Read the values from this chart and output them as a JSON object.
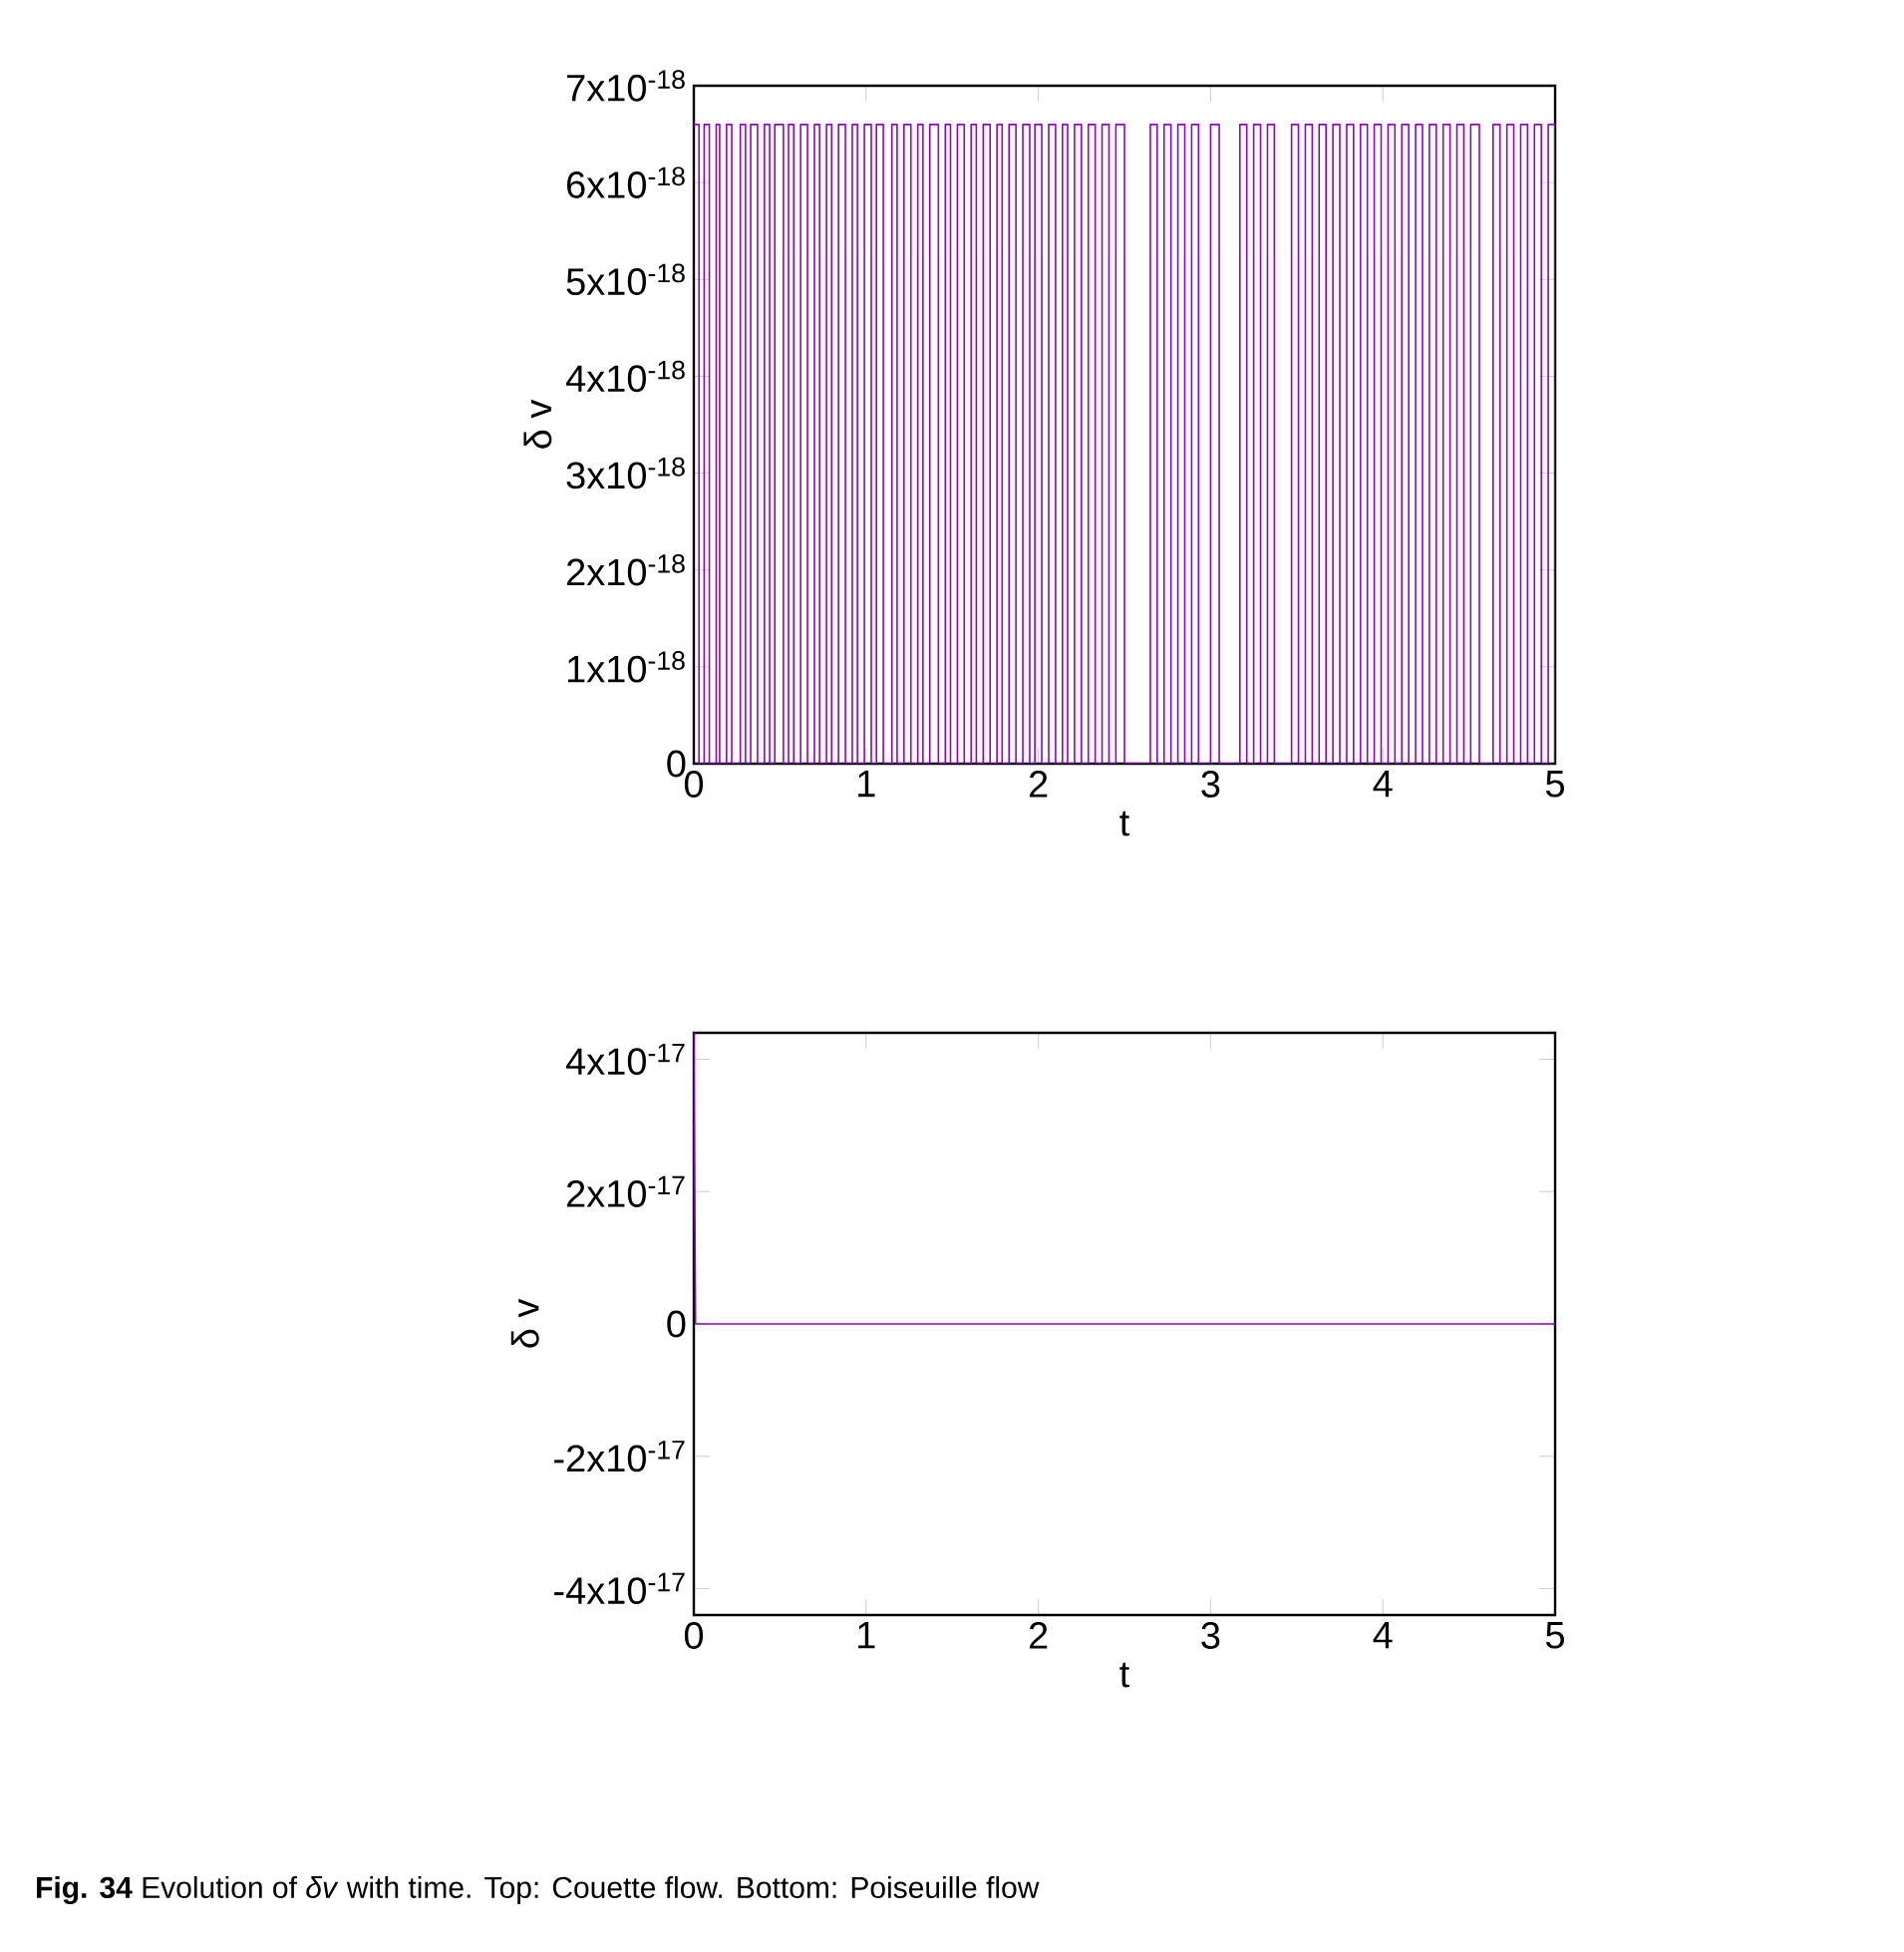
{
  "chart_data": [
    {
      "type": "step",
      "xlabel": "t",
      "ylabel": "δ v",
      "xlim": [
        0,
        5
      ],
      "xticks": [
        0,
        1,
        2,
        3,
        4,
        5
      ],
      "ylim": [
        0,
        7e-18
      ],
      "yticks": [
        0,
        {
          "value": 1e-18,
          "label": "1x10$^{-18}$"
        },
        {
          "value": 2e-18,
          "label": "2x10$^{-18}$"
        },
        {
          "value": 3e-18,
          "label": "3x10$^{-18}$"
        },
        {
          "value": 4e-18,
          "label": "4x10$^{-18}$"
        },
        {
          "value": 5e-18,
          "label": "5x10$^{-18}$"
        },
        {
          "value": 6e-18,
          "label": "6x10$^{-18}$"
        },
        {
          "value": 7e-18,
          "label": "7x10$^{-18}$"
        }
      ],
      "color": "#9400d3",
      "x": [
        0.0,
        0.03,
        0.06,
        0.09,
        0.13,
        0.15,
        0.19,
        0.22,
        0.27,
        0.3,
        0.33,
        0.37,
        0.41,
        0.44,
        0.47,
        0.52,
        0.55,
        0.58,
        0.62,
        0.66,
        0.7,
        0.73,
        0.77,
        0.8,
        0.84,
        0.88,
        0.92,
        0.95,
        0.99,
        1.03,
        1.06,
        1.1,
        1.15,
        1.18,
        1.22,
        1.26,
        1.3,
        1.33,
        1.37,
        1.42,
        1.46,
        1.49,
        1.53,
        1.57,
        1.61,
        1.64,
        1.68,
        1.72,
        1.76,
        1.79,
        1.83,
        1.87,
        1.91,
        1.95,
        1.98,
        2.02,
        2.06,
        2.1,
        2.14,
        2.17,
        2.21,
        2.25,
        2.29,
        2.33,
        2.37,
        2.41,
        2.45,
        2.5,
        2.65,
        2.69,
        2.73,
        2.77,
        2.81,
        2.85,
        2.89,
        2.93,
        3.0,
        3.05,
        3.17,
        3.21,
        3.25,
        3.29,
        3.33,
        3.37,
        3.47,
        3.51,
        3.55,
        3.59,
        3.63,
        3.67,
        3.71,
        3.75,
        3.79,
        3.83,
        3.87,
        3.91,
        3.95,
        3.99,
        4.03,
        4.07,
        4.11,
        4.15,
        4.19,
        4.23,
        4.27,
        4.31,
        4.35,
        4.39,
        4.43,
        4.47,
        4.51,
        4.56,
        4.64,
        4.68,
        4.72,
        4.76,
        4.8,
        4.84,
        4.88,
        4.92,
        4.96,
        5.0
      ],
      "values": [
        6.6e-18,
        0,
        6.6e-18,
        0,
        6.6e-18,
        0,
        6.6e-18,
        0,
        6.6e-18,
        0,
        6.6e-18,
        0,
        6.6e-18,
        0,
        6.6e-18,
        0,
        6.6e-18,
        0,
        6.6e-18,
        0,
        6.6e-18,
        0,
        6.6e-18,
        0,
        6.6e-18,
        0,
        6.6e-18,
        0,
        6.6e-18,
        0,
        6.6e-18,
        0,
        6.6e-18,
        0,
        6.6e-18,
        0,
        6.6e-18,
        0,
        6.6e-18,
        0,
        6.6e-18,
        0,
        6.6e-18,
        0,
        6.6e-18,
        0,
        6.6e-18,
        0,
        6.6e-18,
        0,
        6.6e-18,
        0,
        6.6e-18,
        0,
        6.6e-18,
        0,
        6.6e-18,
        0,
        6.6e-18,
        0,
        6.6e-18,
        0,
        6.6e-18,
        0,
        6.6e-18,
        0,
        6.6e-18,
        0,
        6.6e-18,
        0,
        6.6e-18,
        0,
        6.6e-18,
        0,
        6.6e-18,
        0,
        6.6e-18,
        0,
        6.6e-18,
        0,
        6.6e-18,
        0,
        6.6e-18,
        0,
        6.6e-18,
        0,
        6.6e-18,
        0,
        6.6e-18,
        0,
        6.6e-18,
        0,
        6.6e-18,
        0,
        6.6e-18,
        0,
        6.6e-18,
        0,
        6.6e-18,
        0,
        6.6e-18,
        0,
        6.6e-18,
        0,
        6.6e-18,
        0,
        6.6e-18,
        0,
        6.6e-18,
        0,
        6.6e-18,
        0,
        6.6e-18,
        0,
        6.6e-18,
        0,
        6.6e-18,
        0,
        6.6e-18,
        0,
        6.6e-18,
        0
      ]
    },
    {
      "type": "line",
      "xlabel": "t",
      "ylabel": "δ v",
      "xlim": [
        0,
        5
      ],
      "xticks": [
        0,
        1,
        2,
        3,
        4,
        5
      ],
      "ylim": [
        -4.4e-17,
        4.4e-17
      ],
      "yticks": [
        {
          "value": -4e-17,
          "label": "-4x10$^{-17}$"
        },
        {
          "value": -2e-17,
          "label": "-2x10$^{-17}$"
        },
        0,
        {
          "value": 2e-17,
          "label": "2x10$^{-17}$"
        },
        {
          "value": 4e-17,
          "label": "4x10$^{-17}$"
        }
      ],
      "color": "#9400d3",
      "x": [
        0,
        0.01,
        5
      ],
      "values": [
        4.4e-17,
        0,
        0
      ],
      "annotations": [
        "**Fig. 34**  Evolution of *δv* with time. Top: Couette flow. Bottom: Poiseuille flow"
      ]
    }
  ]
}
